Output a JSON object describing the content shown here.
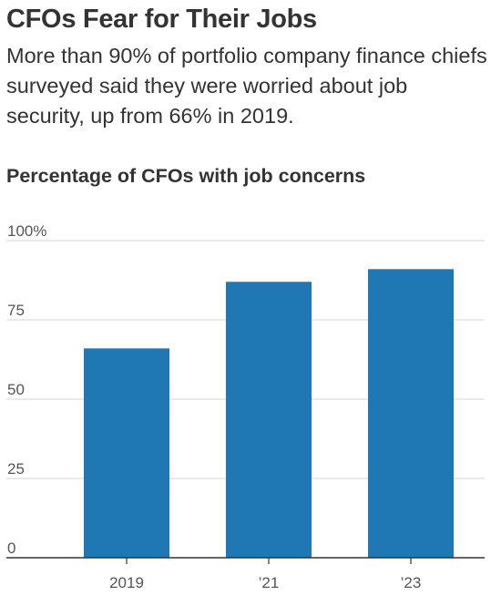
{
  "headline": "CFOs Fear for Their Jobs",
  "subhead": "More than 90% of portfolio company finance chiefs surveyed said they were worried about job security, up from 66% in 2019.",
  "chart_data": {
    "type": "bar",
    "title": "Percentage of CFOs with job concerns",
    "categories": [
      "2019",
      "’21",
      "’23"
    ],
    "values": [
      66,
      87,
      91
    ],
    "ylim": [
      0,
      100
    ],
    "yticks": [
      0,
      25,
      50,
      75,
      100
    ],
    "ytick_labels": [
      "0",
      "25",
      "50",
      "75",
      "100%"
    ],
    "xlabel": "",
    "ylabel": "",
    "bar_color": "#1f77b4",
    "grid": true,
    "legend": "none"
  }
}
